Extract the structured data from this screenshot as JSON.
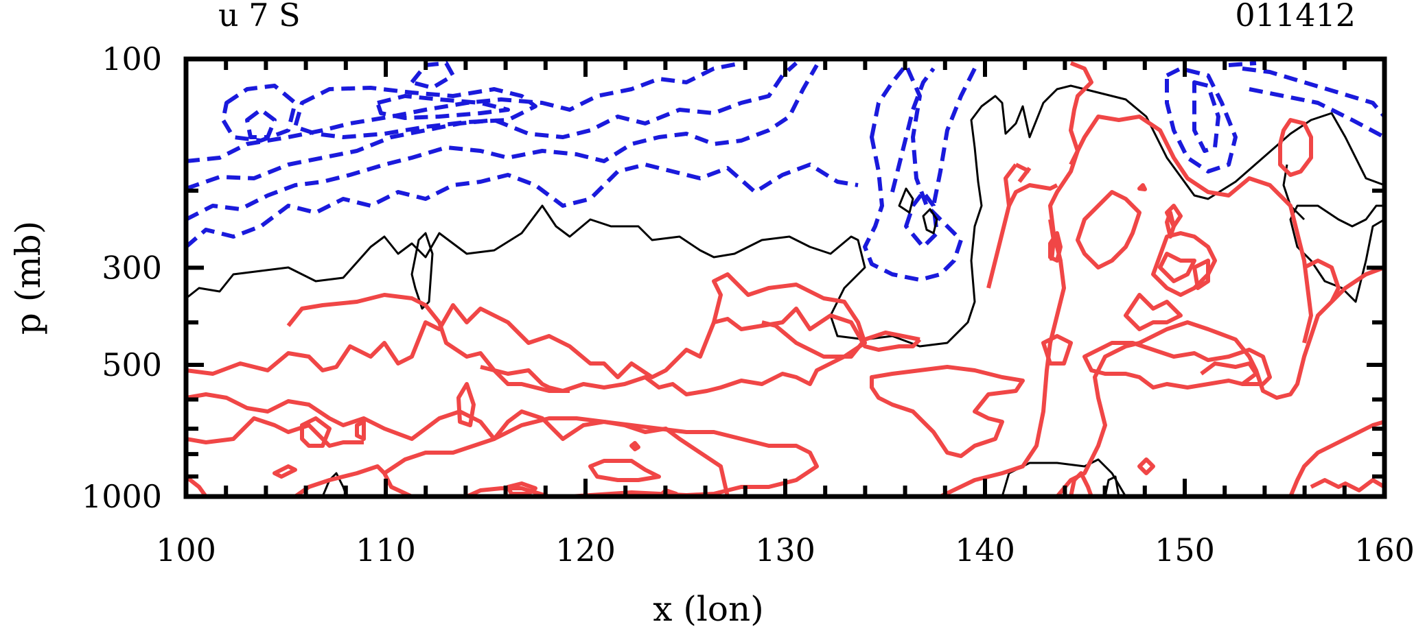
{
  "chart_data": {
    "type": "contour",
    "title_left": "u 7 S",
    "title_right": "011412",
    "xlabel": "x (lon)",
    "ylabel": "p (mb)",
    "xlim": [
      100,
      160
    ],
    "ylim": [
      100,
      1000
    ],
    "x_ticks": [
      100,
      110,
      120,
      130,
      140,
      150,
      160
    ],
    "x_tick_labels": [
      "100",
      "110",
      "120",
      "130",
      "140",
      "150",
      "160"
    ],
    "y_ticks": [
      100,
      300,
      500,
      1000
    ],
    "y_tick_labels": [
      "100",
      "300",
      "500",
      "1000"
    ],
    "y_scale": "log",
    "contour_series": [
      {
        "name": "negative",
        "style": "dashed",
        "color": "#1a1adc"
      },
      {
        "name": "zero",
        "style": "solid",
        "color": "#000000"
      },
      {
        "name": "positive",
        "style": "solid",
        "color": "#f04646"
      }
    ]
  }
}
